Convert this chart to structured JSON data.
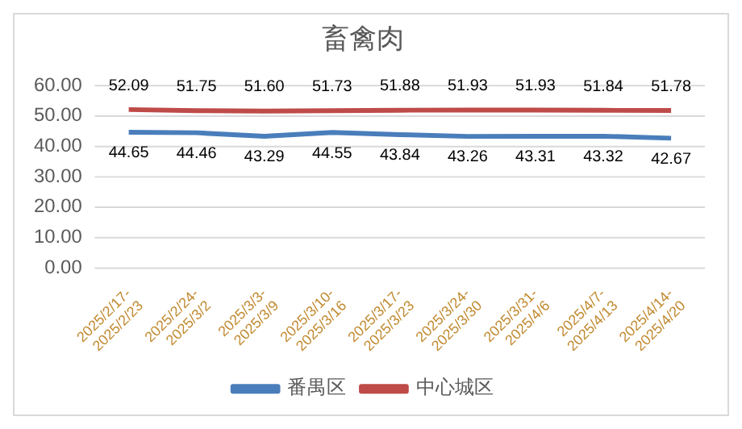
{
  "chart_data": {
    "type": "line",
    "title": "畜禽肉",
    "categories": [
      "2025/2/17-2025/2/23",
      "2025/2/24-2025/3/2",
      "2025/3/3-2025/3/9",
      "2025/3/10-2025/3/16",
      "2025/3/17-2025/3/23",
      "2025/3/24-2025/3/30",
      "2025/3/31-2025/4/6",
      "2025/4/7-2025/4/13",
      "2025/4/14-2025/4/20"
    ],
    "series": [
      {
        "name": "番禺区",
        "color": "#4a7ebb",
        "values": [
          44.65,
          44.46,
          43.29,
          44.55,
          43.84,
          43.26,
          43.31,
          43.32,
          42.67
        ],
        "value_labels": [
          "44.65",
          "44.46",
          "43.29",
          "44.55",
          "43.84",
          "43.26",
          "43.31",
          "43.32",
          "42.67"
        ]
      },
      {
        "name": "中心城区",
        "color": "#be4b48",
        "values": [
          52.09,
          51.75,
          51.6,
          51.73,
          51.88,
          51.93,
          51.93,
          51.84,
          51.78
        ],
        "value_labels": [
          "52.09",
          "51.75",
          "51.60",
          "51.73",
          "51.88",
          "51.93",
          "51.93",
          "51.84",
          "51.78"
        ]
      }
    ],
    "ylim": [
      0,
      60
    ],
    "yticks": [
      {
        "value": 0,
        "label": "0.00"
      },
      {
        "value": 10,
        "label": "10.00"
      },
      {
        "value": 20,
        "label": "20.00"
      },
      {
        "value": 30,
        "label": "30.00"
      },
      {
        "value": 40,
        "label": "40.00"
      },
      {
        "value": 50,
        "label": "50.00"
      },
      {
        "value": 60,
        "label": "60.00"
      }
    ],
    "grid": "y",
    "legend": "bottom",
    "marker": "none",
    "line_style": "solid"
  }
}
